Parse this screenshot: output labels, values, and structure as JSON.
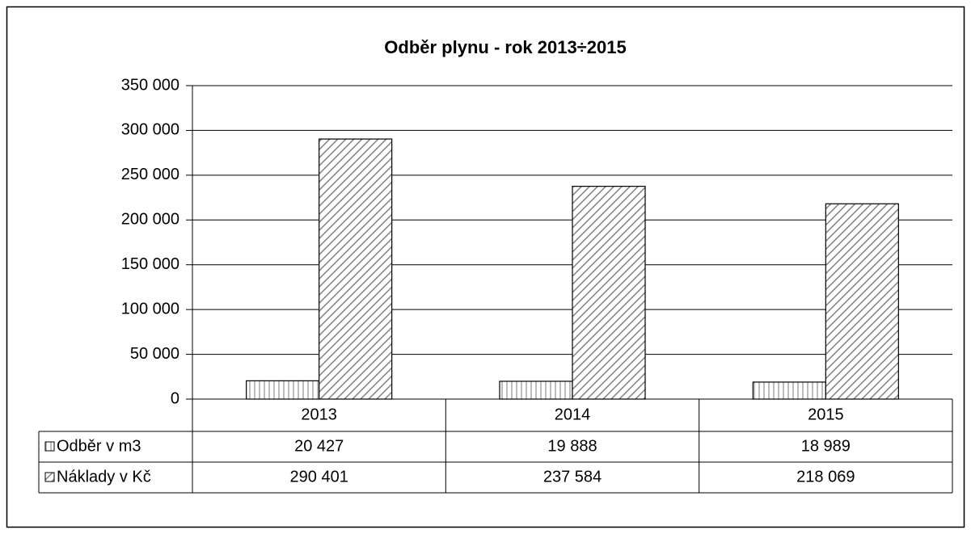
{
  "chart_data": {
    "type": "bar",
    "title": "Odběr plynu - rok 2013÷2015",
    "categories": [
      "2013",
      "2014",
      "2015"
    ],
    "series": [
      {
        "name": "Odběr v m3",
        "color": "#a6a6a6",
        "values": [
          20427,
          19888,
          18989
        ],
        "value_labels": [
          "20 427",
          "19 888",
          "18 989"
        ]
      },
      {
        "name": "Náklady v Kč",
        "color": "#808080",
        "values": [
          290401,
          237584,
          218069
        ],
        "value_labels": [
          "290 401",
          "237 584",
          "218 069"
        ]
      }
    ],
    "ylim": [
      0,
      350000
    ],
    "yticks": [
      0,
      {
        "value": 50000,
        "label": "50 000"
      },
      {
        "value": 100000,
        "label": "100 000"
      },
      {
        "value": 150000,
        "label": "150 000"
      },
      {
        "value": 200000,
        "label": "200 000"
      },
      {
        "value": 250000,
        "label": "250 000"
      },
      {
        "value": 300000,
        "label": "300 000"
      },
      {
        "value": 350000,
        "label": "350 000"
      }
    ],
    "grid": true
  }
}
